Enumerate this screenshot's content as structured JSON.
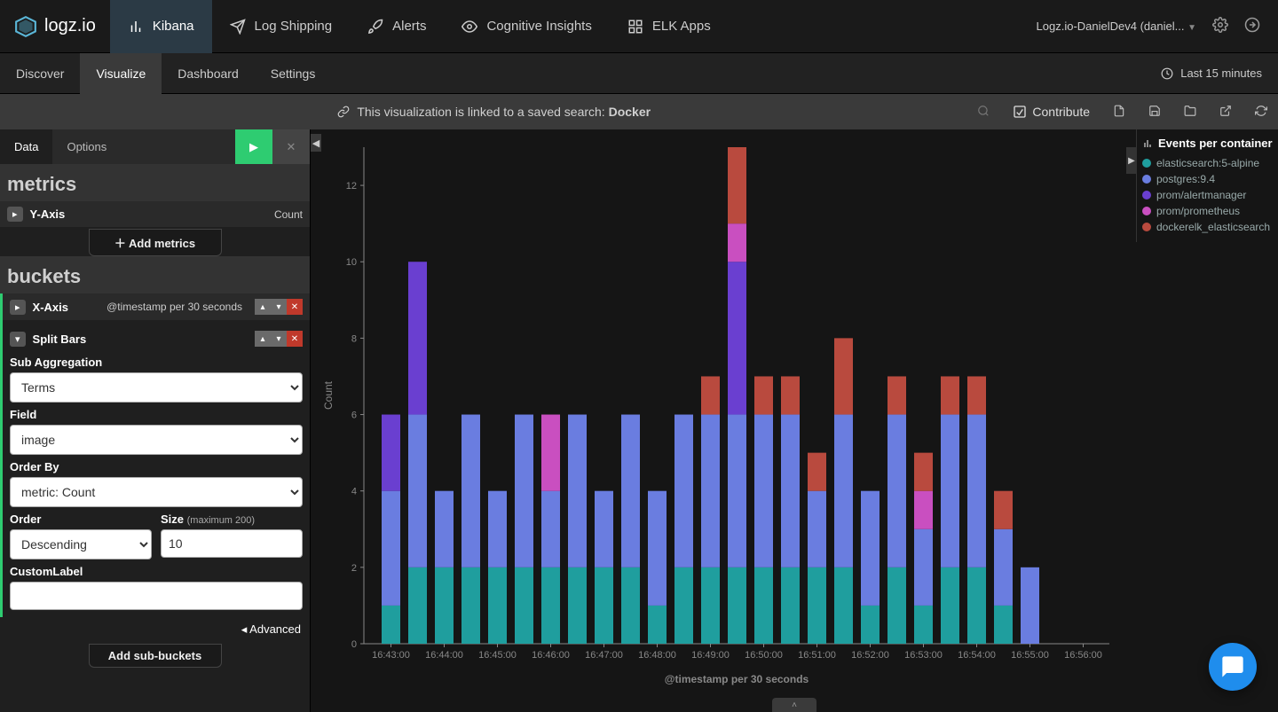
{
  "brand": "logz.io",
  "topnav": {
    "items": [
      {
        "label": "Kibana",
        "active": true,
        "icon": "bar-chart"
      },
      {
        "label": "Log Shipping",
        "active": false,
        "icon": "send"
      },
      {
        "label": "Alerts",
        "active": false,
        "icon": "rocket"
      },
      {
        "label": "Cognitive Insights",
        "active": false,
        "icon": "eye"
      },
      {
        "label": "ELK Apps",
        "active": false,
        "icon": "apps"
      }
    ],
    "account": "Logz.io-DanielDev4 (daniel..."
  },
  "subnav": {
    "tabs": [
      {
        "label": "Discover",
        "active": false
      },
      {
        "label": "Visualize",
        "active": true
      },
      {
        "label": "Dashboard",
        "active": false
      },
      {
        "label": "Settings",
        "active": false
      }
    ],
    "timerange": "Last 15 minutes"
  },
  "linkbar": {
    "text_prefix": "This visualization is linked to a saved search: ",
    "search_name": "Docker",
    "contribute": "Contribute"
  },
  "sidebar": {
    "tabs": [
      {
        "label": "Data",
        "active": true
      },
      {
        "label": "Options",
        "active": false
      }
    ],
    "section_metrics": "metrics",
    "yaxis_label": "Y-Axis",
    "yaxis_value": "Count",
    "add_metrics": "Add metrics",
    "section_buckets": "buckets",
    "xaxis_label": "X-Axis",
    "xaxis_meta": "@timestamp per 30 seconds",
    "split_bars": "Split Bars",
    "sub_agg_label": "Sub Aggregation",
    "sub_agg_value": "Terms",
    "field_label": "Field",
    "field_value": "image",
    "orderby_label": "Order By",
    "orderby_value": "metric: Count",
    "order_label": "Order",
    "order_value": "Descending",
    "size_label": "Size",
    "size_hint": "(maximum 200)",
    "size_value": "10",
    "customlabel_label": "CustomLabel",
    "customlabel_value": "",
    "advanced": "Advanced",
    "add_sub_buckets": "Add sub-buckets"
  },
  "legend": {
    "title": "Events per container",
    "items": [
      {
        "label": "elasticsearch:5-alpine",
        "color": "#1f9e9e"
      },
      {
        "label": "postgres:9.4",
        "color": "#6a7de0"
      },
      {
        "label": "prom/alertmanager",
        "color": "#6a3fd0"
      },
      {
        "label": "prom/prometheus",
        "color": "#c94fc0"
      },
      {
        "label": "dockerelk_elasticsearch",
        "color": "#b94a3e"
      }
    ]
  },
  "chart": {
    "type": "stacked-bar",
    "ylabel": "Count",
    "xlabel": "@timestamp per 30 seconds",
    "ylim": [
      0,
      13
    ],
    "yticks": [
      0,
      2,
      4,
      6,
      8,
      10,
      12
    ],
    "background_color": "#151515",
    "grid_color": "#2a2a2a",
    "axis_color": "#888888",
    "tick_font_color": "#888888",
    "tick_fontsize": 11,
    "label_fontsize": 12,
    "series_colors": {
      "elasticsearch": "#1f9e9e",
      "postgres": "#6a7de0",
      "alertmanager": "#6a3fd0",
      "prometheus": "#c94fc0",
      "dockerelk": "#b94a3e"
    },
    "x_major_labels": [
      "16:43:00",
      "16:44:00",
      "16:45:00",
      "16:46:00",
      "16:47:00",
      "16:48:00",
      "16:49:00",
      "16:50:00",
      "16:51:00",
      "16:52:00",
      "16:53:00",
      "16:54:00",
      "16:55:00",
      "16:56:00"
    ],
    "bars": [
      {
        "x": 0,
        "stack": {
          "elasticsearch": 1,
          "postgres": 3,
          "alertmanager": 2,
          "prometheus": 0,
          "dockerelk": 0
        }
      },
      {
        "x": 1,
        "stack": {
          "elasticsearch": 2,
          "postgres": 4,
          "alertmanager": 4,
          "prometheus": 0,
          "dockerelk": 0
        }
      },
      {
        "x": 2,
        "stack": {
          "elasticsearch": 2,
          "postgres": 2,
          "alertmanager": 0,
          "prometheus": 0,
          "dockerelk": 0
        }
      },
      {
        "x": 3,
        "stack": {
          "elasticsearch": 2,
          "postgres": 4,
          "alertmanager": 0,
          "prometheus": 0,
          "dockerelk": 0
        }
      },
      {
        "x": 4,
        "stack": {
          "elasticsearch": 2,
          "postgres": 2,
          "alertmanager": 0,
          "prometheus": 0,
          "dockerelk": 0
        }
      },
      {
        "x": 5,
        "stack": {
          "elasticsearch": 2,
          "postgres": 4,
          "alertmanager": 0,
          "prometheus": 0,
          "dockerelk": 0
        }
      },
      {
        "x": 6,
        "stack": {
          "elasticsearch": 2,
          "postgres": 2,
          "alertmanager": 0,
          "prometheus": 2,
          "dockerelk": 0
        }
      },
      {
        "x": 7,
        "stack": {
          "elasticsearch": 2,
          "postgres": 4,
          "alertmanager": 0,
          "prometheus": 0,
          "dockerelk": 0
        }
      },
      {
        "x": 8,
        "stack": {
          "elasticsearch": 2,
          "postgres": 2,
          "alertmanager": 0,
          "prometheus": 0,
          "dockerelk": 0
        }
      },
      {
        "x": 9,
        "stack": {
          "elasticsearch": 2,
          "postgres": 4,
          "alertmanager": 0,
          "prometheus": 0,
          "dockerelk": 0
        }
      },
      {
        "x": 10,
        "stack": {
          "elasticsearch": 1,
          "postgres": 3,
          "alertmanager": 0,
          "prometheus": 0,
          "dockerelk": 0
        }
      },
      {
        "x": 11,
        "stack": {
          "elasticsearch": 2,
          "postgres": 4,
          "alertmanager": 0,
          "prometheus": 0,
          "dockerelk": 0
        }
      },
      {
        "x": 12,
        "stack": {
          "elasticsearch": 2,
          "postgres": 4,
          "alertmanager": 0,
          "prometheus": 0,
          "dockerelk": 1
        }
      },
      {
        "x": 13,
        "stack": {
          "elasticsearch": 2,
          "postgres": 4,
          "alertmanager": 4,
          "prometheus": 1,
          "dockerelk": 2
        }
      },
      {
        "x": 14,
        "stack": {
          "elasticsearch": 2,
          "postgres": 4,
          "alertmanager": 0,
          "prometheus": 0,
          "dockerelk": 1
        }
      },
      {
        "x": 15,
        "stack": {
          "elasticsearch": 2,
          "postgres": 4,
          "alertmanager": 0,
          "prometheus": 0,
          "dockerelk": 1
        }
      },
      {
        "x": 16,
        "stack": {
          "elasticsearch": 2,
          "postgres": 2,
          "alertmanager": 0,
          "prometheus": 0,
          "dockerelk": 1
        }
      },
      {
        "x": 17,
        "stack": {
          "elasticsearch": 2,
          "postgres": 4,
          "alertmanager": 0,
          "prometheus": 0,
          "dockerelk": 2
        }
      },
      {
        "x": 18,
        "stack": {
          "elasticsearch": 1,
          "postgres": 3,
          "alertmanager": 0,
          "prometheus": 0,
          "dockerelk": 0
        }
      },
      {
        "x": 19,
        "stack": {
          "elasticsearch": 2,
          "postgres": 4,
          "alertmanager": 0,
          "prometheus": 0,
          "dockerelk": 1
        }
      },
      {
        "x": 20,
        "stack": {
          "elasticsearch": 1,
          "postgres": 2,
          "alertmanager": 0,
          "prometheus": 1,
          "dockerelk": 1
        }
      },
      {
        "x": 21,
        "stack": {
          "elasticsearch": 2,
          "postgres": 4,
          "alertmanager": 0,
          "prometheus": 0,
          "dockerelk": 1
        }
      },
      {
        "x": 22,
        "stack": {
          "elasticsearch": 2,
          "postgres": 4,
          "alertmanager": 0,
          "prometheus": 0,
          "dockerelk": 1
        }
      },
      {
        "x": 23,
        "stack": {
          "elasticsearch": 1,
          "postgres": 2,
          "alertmanager": 0,
          "prometheus": 0,
          "dockerelk": 1
        }
      },
      {
        "x": 24,
        "stack": {
          "elasticsearch": 0,
          "postgres": 2,
          "alertmanager": 0,
          "prometheus": 0,
          "dockerelk": 0
        }
      }
    ],
    "bar_width": 0.7
  }
}
